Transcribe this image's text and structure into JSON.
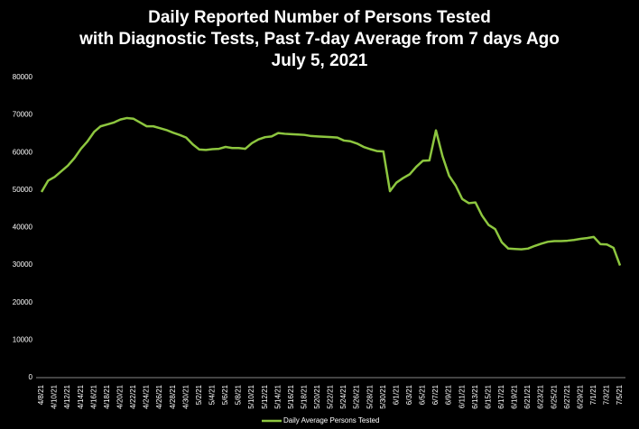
{
  "chart_data": {
    "type": "line",
    "title": [
      "Daily Reported Number of Persons Tested",
      "with Diagnostic Tests, Past 7-day Average from 7 days Ago",
      "July 5, 2021"
    ],
    "categories": [
      "4/8/21",
      null,
      "4/10/21",
      null,
      "4/12/21",
      null,
      "4/14/21",
      null,
      "4/16/21",
      null,
      "4/18/21",
      null,
      "4/20/21",
      null,
      "4/22/21",
      null,
      "4/24/21",
      null,
      "4/26/21",
      null,
      "4/28/21",
      null,
      "4/30/21",
      null,
      "5/2/21",
      null,
      "5/4/21",
      null,
      "5/6/21",
      null,
      "5/8/21",
      null,
      "5/10/21",
      null,
      "5/12/21",
      null,
      "5/14/21",
      null,
      "5/16/21",
      null,
      "5/18/21",
      null,
      "5/20/21",
      null,
      "5/22/21",
      null,
      "5/24/21",
      null,
      "5/26/21",
      null,
      "5/28/21",
      null,
      "5/30/21",
      null,
      "6/1/21",
      null,
      "6/3/21",
      null,
      "6/5/21",
      null,
      "6/7/21",
      null,
      "6/9/21",
      null,
      "6/11/21",
      null,
      "6/13/21",
      null,
      "6/15/21",
      null,
      "6/17/21",
      null,
      "6/19/21",
      null,
      "6/21/21",
      null,
      "6/23/21",
      null,
      "6/25/21",
      null,
      "6/27/21",
      null,
      "6/29/21",
      null,
      "7/1/21",
      null,
      "7/3/21",
      null,
      "7/5/21"
    ],
    "series": [
      {
        "name": "Daily Average Persons Tested",
        "color": "#8dc63f",
        "values": [
          49500,
          52500,
          53500,
          55000,
          56500,
          58500,
          61000,
          63000,
          65500,
          67000,
          67500,
          68000,
          68800,
          69200,
          69000,
          68000,
          67000,
          67000,
          66500,
          66000,
          65300,
          64700,
          64000,
          62200,
          60800,
          60700,
          60900,
          61000,
          61500,
          61200,
          61200,
          61000,
          62500,
          63500,
          64100,
          64300,
          65200,
          65000,
          64900,
          64800,
          64700,
          64400,
          64300,
          64200,
          64100,
          64000,
          63200,
          63000,
          62400,
          61500,
          60900,
          60400,
          60300,
          49700,
          52000,
          53200,
          54200,
          56200,
          57800,
          57900,
          65900,
          59000,
          53800,
          51200,
          47600,
          46500,
          46700,
          43200,
          40700,
          39600,
          36100,
          34400,
          34300,
          34200,
          34400,
          35100,
          35700,
          36200,
          36400,
          36400,
          36500,
          36700,
          37000,
          37200,
          37500,
          35600,
          35500,
          34600,
          29900
        ]
      }
    ],
    "ylim": [
      0,
      80000
    ],
    "yticks": [
      0,
      10000,
      20000,
      30000,
      40000,
      50000,
      60000,
      70000,
      80000
    ],
    "grid": false
  }
}
